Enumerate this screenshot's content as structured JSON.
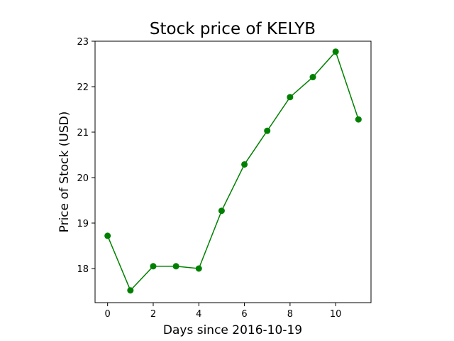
{
  "chart_data": {
    "type": "line",
    "title": "Stock price of KELYB",
    "xlabel": "Days since 2016-10-19",
    "ylabel": "Price of Stock (USD)",
    "x": [
      0,
      1,
      2,
      3,
      4,
      5,
      6,
      7,
      8,
      9,
      10,
      11
    ],
    "series": [
      {
        "values": [
          18.72,
          17.52,
          18.05,
          18.05,
          18.0,
          19.27,
          20.29,
          21.03,
          21.77,
          22.21,
          22.77,
          21.28
        ],
        "color": "#008000"
      }
    ],
    "xlim": [
      -0.55,
      11.55
    ],
    "ylim": [
      17.25,
      23.0
    ],
    "xticks": [
      0,
      2,
      4,
      6,
      8,
      10
    ],
    "yticks": [
      18,
      19,
      20,
      21,
      22,
      23
    ],
    "grid": false,
    "legend": "none"
  }
}
